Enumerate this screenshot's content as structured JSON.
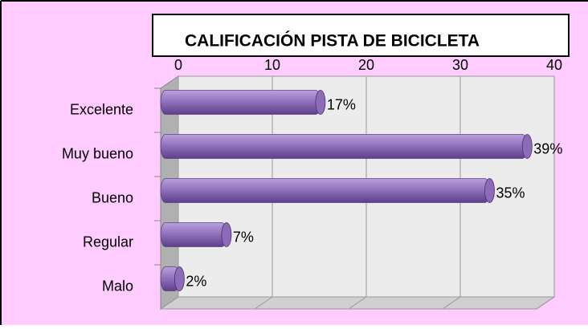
{
  "chart_data": {
    "type": "bar",
    "orientation": "horizontal",
    "title": "CALIFICACIÓN PISTA DE BICICLETA",
    "categories": [
      "Excelente",
      "Muy bueno",
      "Bueno",
      "Regular",
      "Malo"
    ],
    "values": [
      17,
      39,
      35,
      7,
      2
    ],
    "value_labels": [
      "17%",
      "39%",
      "35%",
      "7%",
      "2%"
    ],
    "color": "#8e6bb8",
    "xlim": [
      0,
      40
    ],
    "xticks": [
      0,
      10,
      20,
      30,
      40
    ],
    "grid": true
  }
}
